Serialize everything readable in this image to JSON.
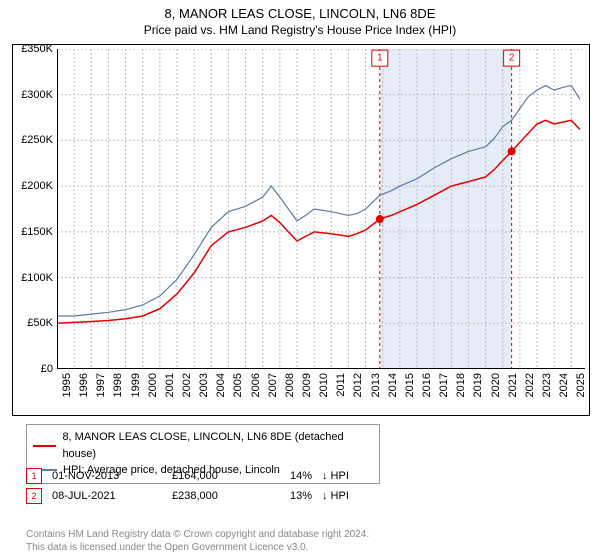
{
  "header": {
    "title": "8, MANOR LEAS CLOSE, LINCOLN, LN6 8DE",
    "subtitle": "Price paid vs. HM Land Registry's House Price Index (HPI)"
  },
  "chart": {
    "type": "line",
    "background_color": "#ffffff",
    "grid_color": "#bfbfbf",
    "axis_color": "#000000",
    "y": {
      "min": 0,
      "max": 350000,
      "ticks": [
        0,
        50000,
        100000,
        150000,
        200000,
        250000,
        300000,
        350000
      ],
      "tick_labels": [
        "£0",
        "£50K",
        "£100K",
        "£150K",
        "£200K",
        "£250K",
        "£300K",
        "£350K"
      ],
      "fontsize": 11
    },
    "x": {
      "min": 1995,
      "max": 2025.8,
      "ticks": [
        1995,
        1996,
        1997,
        1998,
        1999,
        2000,
        2001,
        2002,
        2003,
        2004,
        2005,
        2006,
        2007,
        2008,
        2009,
        2010,
        2011,
        2012,
        2013,
        2014,
        2015,
        2016,
        2017,
        2018,
        2019,
        2020,
        2021,
        2022,
        2023,
        2024,
        2025
      ],
      "tick_labels": [
        "1995",
        "1996",
        "1997",
        "1998",
        "1999",
        "2000",
        "2001",
        "2002",
        "2003",
        "2004",
        "2005",
        "2006",
        "2007",
        "2008",
        "2009",
        "2010",
        "2011",
        "2012",
        "2013",
        "2014",
        "2015",
        "2016",
        "2017",
        "2018",
        "2019",
        "2020",
        "2021",
        "2022",
        "2023",
        "2024",
        "2025"
      ],
      "fontsize": 11
    },
    "shaded_band": {
      "start_x": 2013.83,
      "end_x": 2021.52,
      "fill": "#e5ecf6"
    },
    "series": [
      {
        "name": "property",
        "label": "8, MANOR LEAS CLOSE, LINCOLN, LN6 8DE (detached house)",
        "color": "#e60000",
        "line_width": 1.5,
        "points": [
          [
            1995,
            50000
          ],
          [
            1996,
            51000
          ],
          [
            1997,
            52000
          ],
          [
            1998,
            53000
          ],
          [
            1999,
            55000
          ],
          [
            2000,
            58000
          ],
          [
            2001,
            66000
          ],
          [
            2002,
            82000
          ],
          [
            2003,
            105000
          ],
          [
            2004,
            135000
          ],
          [
            2005,
            150000
          ],
          [
            2006,
            155000
          ],
          [
            2007,
            162000
          ],
          [
            2007.5,
            168000
          ],
          [
            2008,
            160000
          ],
          [
            2008.5,
            150000
          ],
          [
            2009,
            140000
          ],
          [
            2009.5,
            145000
          ],
          [
            2010,
            150000
          ],
          [
            2011,
            148000
          ],
          [
            2012,
            145000
          ],
          [
            2012.5,
            148000
          ],
          [
            2013,
            152000
          ],
          [
            2013.83,
            164000
          ],
          [
            2014.5,
            168000
          ],
          [
            2015,
            172000
          ],
          [
            2016,
            180000
          ],
          [
            2017,
            190000
          ],
          [
            2018,
            200000
          ],
          [
            2019,
            205000
          ],
          [
            2020,
            210000
          ],
          [
            2020.5,
            218000
          ],
          [
            2021,
            228000
          ],
          [
            2021.52,
            238000
          ],
          [
            2022,
            248000
          ],
          [
            2022.5,
            258000
          ],
          [
            2023,
            268000
          ],
          [
            2023.5,
            272000
          ],
          [
            2024,
            268000
          ],
          [
            2024.5,
            270000
          ],
          [
            2025,
            272000
          ],
          [
            2025.5,
            262000
          ]
        ]
      },
      {
        "name": "hpi",
        "label": "HPI: Average price, detached house, Lincoln",
        "color": "#5b7ba8",
        "line_width": 1.2,
        "points": [
          [
            1995,
            58000
          ],
          [
            1996,
            58000
          ],
          [
            1997,
            60000
          ],
          [
            1998,
            62000
          ],
          [
            1999,
            65000
          ],
          [
            2000,
            70000
          ],
          [
            2001,
            80000
          ],
          [
            2002,
            98000
          ],
          [
            2003,
            125000
          ],
          [
            2004,
            155000
          ],
          [
            2005,
            172000
          ],
          [
            2006,
            178000
          ],
          [
            2007,
            188000
          ],
          [
            2007.5,
            200000
          ],
          [
            2008,
            188000
          ],
          [
            2008.5,
            175000
          ],
          [
            2009,
            162000
          ],
          [
            2009.5,
            168000
          ],
          [
            2010,
            175000
          ],
          [
            2011,
            172000
          ],
          [
            2012,
            168000
          ],
          [
            2012.5,
            170000
          ],
          [
            2013,
            175000
          ],
          [
            2013.83,
            190000
          ],
          [
            2014.5,
            195000
          ],
          [
            2015,
            200000
          ],
          [
            2016,
            208000
          ],
          [
            2017,
            220000
          ],
          [
            2018,
            230000
          ],
          [
            2019,
            238000
          ],
          [
            2020,
            243000
          ],
          [
            2020.5,
            252000
          ],
          [
            2021,
            265000
          ],
          [
            2021.52,
            272000
          ],
          [
            2022,
            285000
          ],
          [
            2022.5,
            298000
          ],
          [
            2023,
            305000
          ],
          [
            2023.5,
            310000
          ],
          [
            2024,
            305000
          ],
          [
            2024.5,
            308000
          ],
          [
            2025,
            310000
          ],
          [
            2025.5,
            295000
          ]
        ]
      }
    ],
    "sale_markers": [
      {
        "n": "1",
        "x": 2013.83,
        "y": 164000,
        "color": "#e60000"
      },
      {
        "n": "2",
        "x": 2021.52,
        "y": 238000,
        "color": "#e60000"
      }
    ],
    "sale_flag_y": 340000
  },
  "legend": {
    "items": [
      {
        "color": "#e60000",
        "label": "8, MANOR LEAS CLOSE, LINCOLN, LN6 8DE (detached house)"
      },
      {
        "color": "#5b7ba8",
        "label": "HPI: Average price, detached house, Lincoln"
      }
    ]
  },
  "sales": [
    {
      "n": "1",
      "marker_color": "#e60000",
      "date": "01-NOV-2013",
      "price": "£164,000",
      "pct": "14%",
      "direction": "↓ HPI"
    },
    {
      "n": "2",
      "marker_color": "#e60000",
      "date": "08-JUL-2021",
      "price": "£238,000",
      "pct": "13%",
      "direction": "↓ HPI"
    }
  ],
  "footer": {
    "line1": "Contains HM Land Registry data © Crown copyright and database right 2024.",
    "line2": "This data is licensed under the Open Government Licence v3.0."
  }
}
